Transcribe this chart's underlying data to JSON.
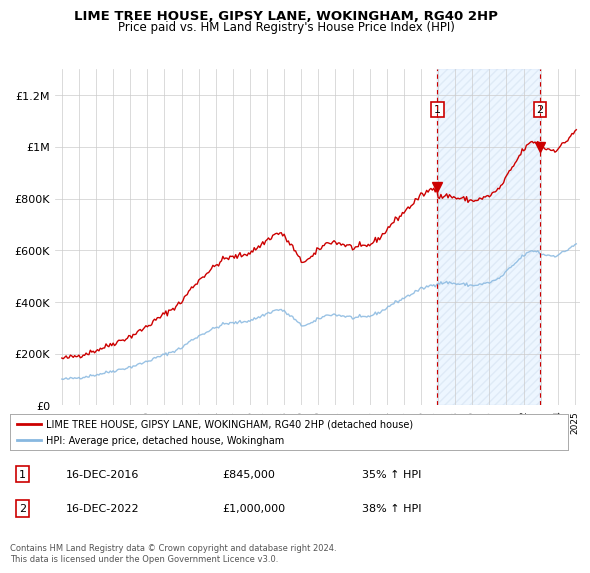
{
  "title": "LIME TREE HOUSE, GIPSY LANE, WOKINGHAM, RG40 2HP",
  "subtitle": "Price paid vs. HM Land Registry's House Price Index (HPI)",
  "ylim": [
    0,
    1300000
  ],
  "yticks": [
    0,
    200000,
    400000,
    600000,
    800000,
    1000000,
    1200000
  ],
  "ytick_labels": [
    "£0",
    "£200K",
    "£400K",
    "£600K",
    "£800K",
    "£1M",
    "£1.2M"
  ],
  "hpi_color": "#88b8e0",
  "price_color": "#cc0000",
  "sale1_x": 2016.96,
  "sale1_price": 845000,
  "sale2_x": 2022.96,
  "sale2_price": 1000000,
  "legend_price_label": "LIME TREE HOUSE, GIPSY LANE, WOKINGHAM, RG40 2HP (detached house)",
  "legend_hpi_label": "HPI: Average price, detached house, Wokingham",
  "ann1_date": "16-DEC-2016",
  "ann1_price": "£845,000",
  "ann1_hpi": "35% ↑ HPI",
  "ann2_date": "16-DEC-2022",
  "ann2_price": "£1,000,000",
  "ann2_hpi": "38% ↑ HPI",
  "footer": "Contains HM Land Registry data © Crown copyright and database right 2024.\nThis data is licensed under the Open Government Licence v3.0.",
  "bg": "#ffffff",
  "grid_color": "#cccccc",
  "shade_color": "#ddeeff"
}
